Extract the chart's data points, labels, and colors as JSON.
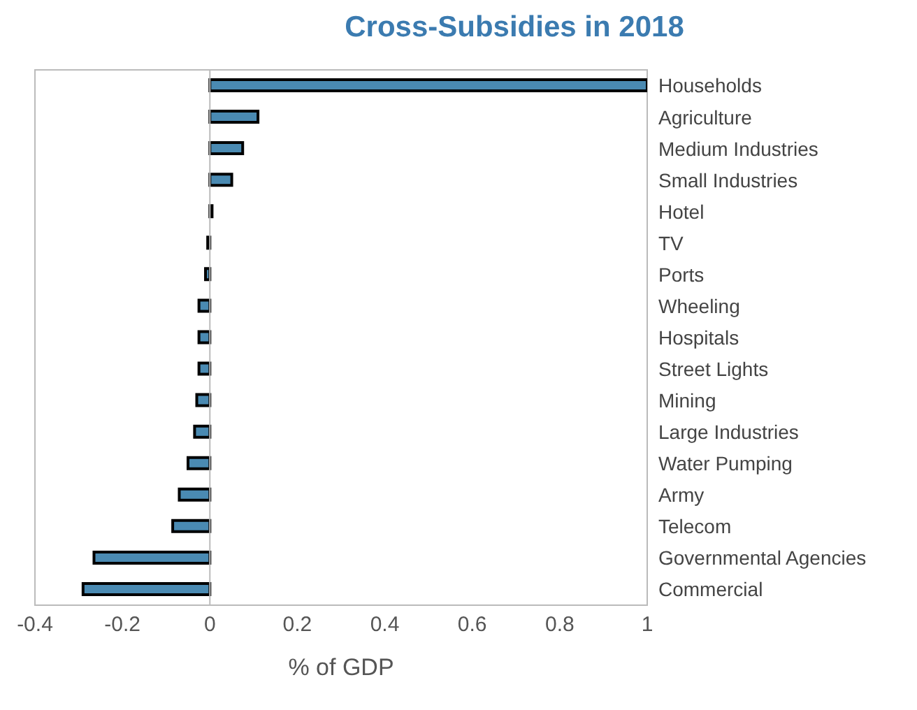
{
  "chart_data": {
    "type": "bar",
    "orientation": "horizontal",
    "title": "Cross-Subsidies in 2018",
    "xlabel": "% of GDP",
    "categories": [
      "Households",
      "Agriculture",
      "Medium Industries",
      "Small Industries",
      "Hotel",
      "TV",
      "Ports",
      "Wheeling",
      "Hospitals",
      "Street Lights",
      "Mining",
      "Large Industries",
      "Water Pumping",
      "Army",
      "Telecom",
      "Governmental Agencies",
      "Commercial"
    ],
    "values": [
      1.0,
      0.11,
      0.075,
      0.05,
      0.005,
      -0.005,
      -0.01,
      -0.025,
      -0.025,
      -0.025,
      -0.03,
      -0.035,
      -0.05,
      -0.07,
      -0.085,
      -0.265,
      -0.29
    ],
    "color": "#4a8ab2",
    "xlim": [
      -0.4,
      1
    ],
    "xticks": [
      -0.4,
      -0.2,
      0,
      0.2,
      0.4,
      0.6,
      0.8,
      1
    ]
  }
}
